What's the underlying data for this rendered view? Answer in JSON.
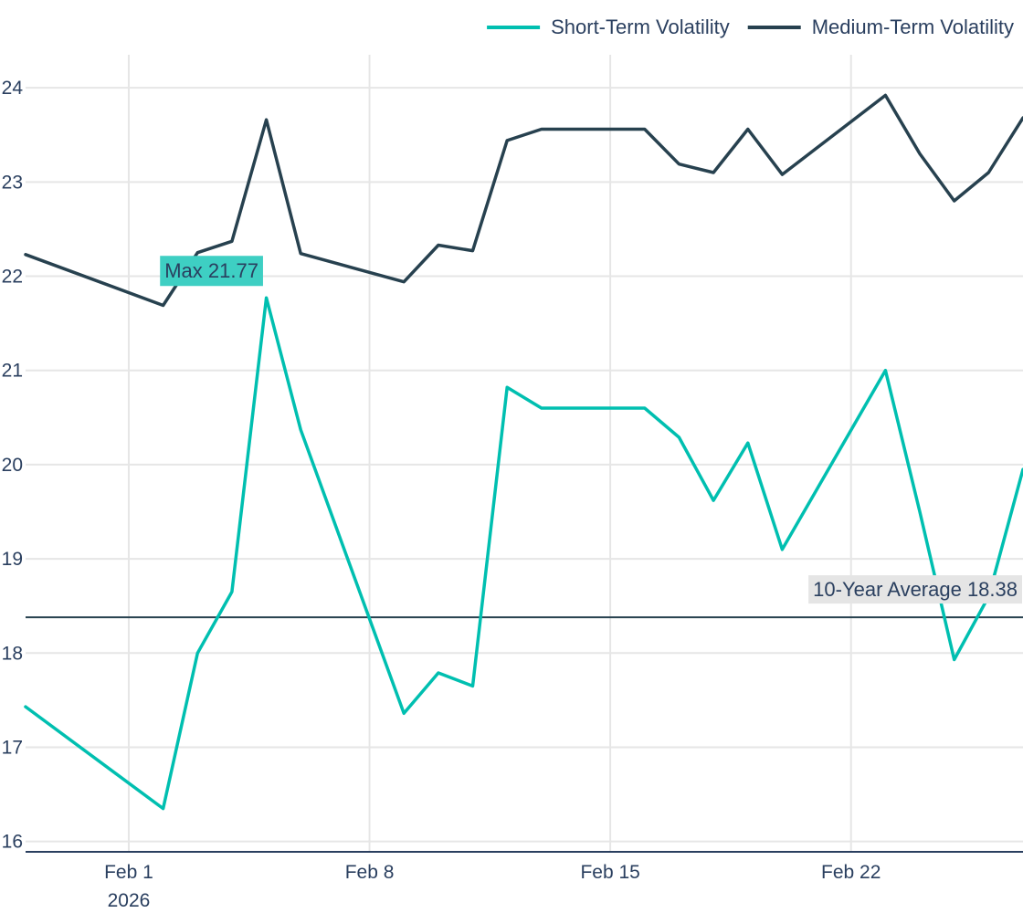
{
  "chart_data": {
    "type": "line",
    "x": [
      "2026-01-29",
      "2026-02-02",
      "2026-02-03",
      "2026-02-04",
      "2026-02-05",
      "2026-02-06",
      "2026-02-09",
      "2026-02-10",
      "2026-02-11",
      "2026-02-12",
      "2026-02-13",
      "2026-02-16",
      "2026-02-17",
      "2026-02-18",
      "2026-02-19",
      "2026-02-20",
      "2026-02-23",
      "2026-02-24",
      "2026-02-25",
      "2026-02-26",
      "2026-02-27"
    ],
    "series": [
      {
        "name": "Short-Term Volatility",
        "color": "#00bfb0",
        "values": [
          17.43,
          16.35,
          18.0,
          18.65,
          21.77,
          20.37,
          17.36,
          17.79,
          17.65,
          20.82,
          20.6,
          20.6,
          20.29,
          19.62,
          20.23,
          19.1,
          21.0,
          19.5,
          17.93,
          18.6,
          19.95
        ]
      },
      {
        "name": "Medium-Term Volatility",
        "color": "#27414f",
        "values": [
          22.23,
          21.69,
          22.25,
          22.37,
          23.66,
          22.24,
          21.94,
          22.33,
          22.27,
          23.44,
          23.56,
          23.56,
          23.19,
          23.1,
          23.56,
          23.08,
          23.92,
          23.3,
          22.8,
          23.1,
          23.68
        ]
      }
    ],
    "ylim": [
      15.9,
      24.35
    ],
    "xlim": [
      "2026-01-29",
      "2026-02-27"
    ],
    "yticks": [
      16,
      17,
      18,
      19,
      20,
      21,
      22,
      23,
      24
    ],
    "xticks": [
      {
        "date": "2026-02-01",
        "label": "Feb 1",
        "sublabel": "2026"
      },
      {
        "date": "2026-02-08",
        "label": "Feb 8",
        "sublabel": ""
      },
      {
        "date": "2026-02-15",
        "label": "Feb 15",
        "sublabel": ""
      },
      {
        "date": "2026-02-22",
        "label": "Feb 22",
        "sublabel": ""
      }
    ],
    "reference_line": {
      "value": 18.38,
      "label": "10-Year Average 18.38",
      "color": "#27414f"
    },
    "annotations": [
      {
        "text": "Max 21.77",
        "x": "2026-02-05",
        "y": 21.77,
        "bg": "#3ecfc3"
      }
    ],
    "grid": true,
    "legend_position": "top-right",
    "xlabel": "",
    "ylabel": "",
    "title": ""
  }
}
